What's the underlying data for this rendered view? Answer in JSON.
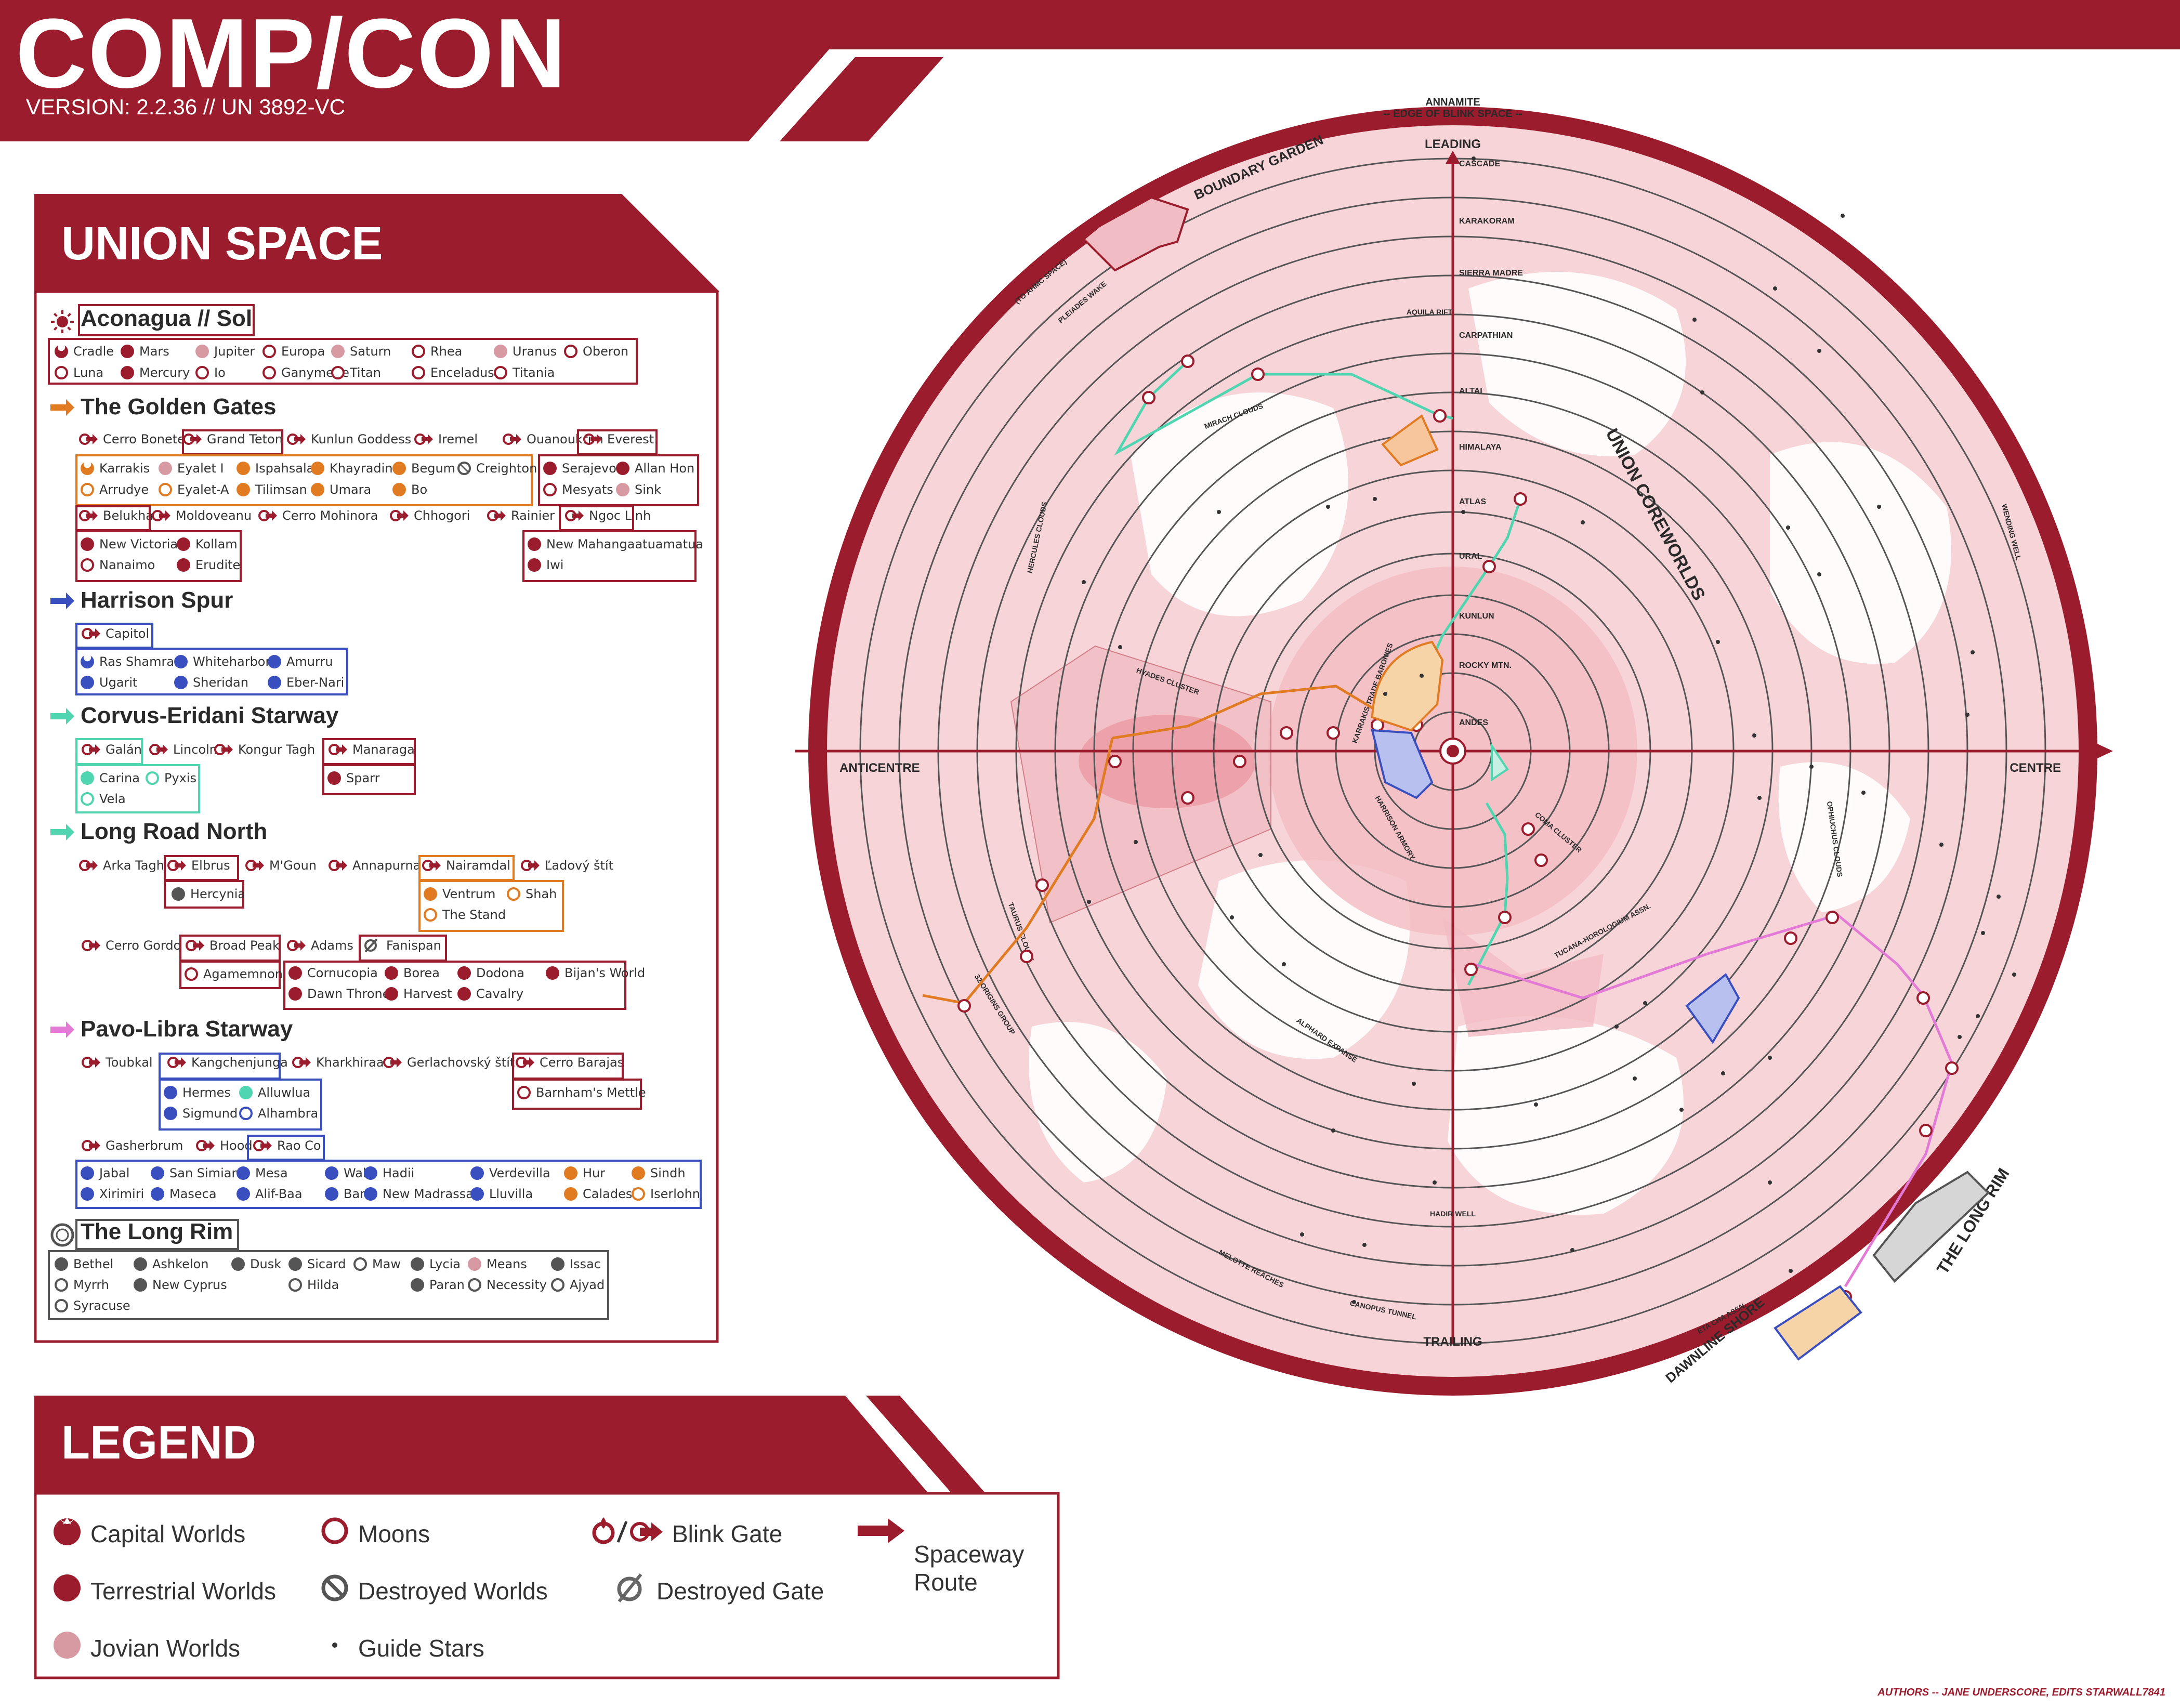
{
  "header": {
    "title": "COMP/CON",
    "version": "VERSION: 2.2.36 // UN 3892-VC"
  },
  "colors": {
    "primary": "#9b1c2c",
    "terrestrial": "#9b1c2c",
    "jovian": "#d79aa3",
    "golden_gates": "#e07b22",
    "harrison_spur": "#3a4fbf",
    "corvus_eridani": "#4fd6b0",
    "long_road_north": "#4fd6b0",
    "pavo_libra": "#e27ad6",
    "long_rim": "#555555"
  },
  "union_space": {
    "title": "UNION SPACE",
    "groups": [
      {
        "id": "sol",
        "title": "Aconagua // Sol",
        "icon": "sun-icon",
        "worlds": [
          {
            "name": "Cradle",
            "type": "capital"
          },
          {
            "name": "Mars",
            "type": "terrestrial"
          },
          {
            "name": "Jupiter",
            "type": "jovian"
          },
          {
            "name": "Europa",
            "type": "moon"
          },
          {
            "name": "Saturn",
            "type": "jovian"
          },
          {
            "name": "Rhea",
            "type": "moon"
          },
          {
            "name": "Uranus",
            "type": "jovian"
          },
          {
            "name": "Oberon",
            "type": "moon"
          },
          {
            "name": "Luna",
            "type": "moon"
          },
          {
            "name": "Mercury",
            "type": "terrestrial"
          },
          {
            "name": "Io",
            "type": "moon"
          },
          {
            "name": "Ganymede",
            "type": "moon"
          },
          {
            "name": "Titan",
            "type": "moon"
          },
          {
            "name": "Enceladus",
            "type": "moon"
          },
          {
            "name": "Titania",
            "type": "moon"
          }
        ]
      },
      {
        "id": "golden",
        "title": "The Golden Gates",
        "icon": "arrow-icon",
        "gates_row1": [
          "Cerro Bonete",
          "Grand Teton",
          "Kunlun Goddess",
          "Iremel",
          "Ouanoukrim",
          "Everest"
        ],
        "worlds_a": [
          {
            "name": "Karrakis",
            "type": "capital"
          },
          {
            "name": "Eyalet I",
            "type": "jovian"
          },
          {
            "name": "Ispahsala",
            "type": "terrestrial"
          },
          {
            "name": "Khayradin",
            "type": "terrestrial"
          },
          {
            "name": "Begum",
            "type": "terrestrial"
          },
          {
            "name": "Creighton",
            "type": "destroyed"
          },
          {
            "name": "Arrudye",
            "type": "moon"
          },
          {
            "name": "Eyalet-A",
            "type": "moon"
          },
          {
            "name": "Tilimsan",
            "type": "terrestrial"
          },
          {
            "name": "Umara",
            "type": "terrestrial"
          },
          {
            "name": "Bo",
            "type": "terrestrial"
          }
        ],
        "worlds_everest": [
          {
            "name": "Serajevo",
            "type": "terrestrial"
          },
          {
            "name": "Allan Hon",
            "type": "terrestrial"
          },
          {
            "name": "Mesyats",
            "type": "moon"
          },
          {
            "name": "Sink",
            "type": "jovian"
          }
        ],
        "gates_row2": [
          "Belukha",
          "Moldoveanu",
          "Cerro Mohinora",
          "Chhogori",
          "Rainier",
          "Ngoc Linh"
        ],
        "worlds_belukha": [
          {
            "name": "New Victoria",
            "type": "terrestrial"
          },
          {
            "name": "Kollam",
            "type": "terrestrial"
          },
          {
            "name": "Nanaimo",
            "type": "moon"
          },
          {
            "name": "Erudite",
            "type": "terrestrial"
          }
        ],
        "worlds_ngoc": [
          {
            "name": "New Mahangaatuamatua",
            "type": "terrestrial"
          },
          {
            "name": "Iwi",
            "type": "terrestrial"
          }
        ]
      },
      {
        "id": "harrison",
        "title": "Harrison Spur",
        "icon": "arrow-icon",
        "gates": [
          "Capitol"
        ],
        "worlds": [
          {
            "name": "Ras Shamra",
            "type": "capital"
          },
          {
            "name": "Whiteharbor",
            "type": "terrestrial"
          },
          {
            "name": "Amurru",
            "type": "terrestrial"
          },
          {
            "name": "Ugarit",
            "type": "terrestrial"
          },
          {
            "name": "Sheridan",
            "type": "terrestrial"
          },
          {
            "name": "Eber-Nari",
            "type": "terrestrial"
          }
        ]
      },
      {
        "id": "corvus",
        "title": "Corvus-Eridani Starway",
        "icon": "arrow-icon",
        "gates": [
          "Galán",
          "Lincoln",
          "Kongur Tagh",
          "Manaraga"
        ],
        "worlds_galan": [
          {
            "name": "Carina",
            "type": "terrestrial"
          },
          {
            "name": "Pyxis",
            "type": "moon"
          },
          {
            "name": "Vela",
            "type": "moon"
          }
        ],
        "worlds_manaraga": [
          {
            "name": "Sparr",
            "type": "terrestrial"
          }
        ]
      },
      {
        "id": "longroad",
        "title": "Long Road North",
        "icon": "arrow-icon",
        "gates_row1": [
          "Arka Tagh",
          "Elbrus",
          "M'Goun",
          "Annapurna",
          "Nairamdal",
          "Ľadový štít"
        ],
        "worlds_elbrus": [
          {
            "name": "Hercynia",
            "type": "destroyed-solid"
          }
        ],
        "worlds_nairamdal": [
          {
            "name": "Ventrum",
            "type": "terrestrial"
          },
          {
            "name": "Shah",
            "type": "moon"
          },
          {
            "name": "The Stand",
            "type": "moon"
          }
        ],
        "gates_row2": [
          "Cerro Gordo",
          "Broad Peak",
          "Adams",
          "Fanispan"
        ],
        "worlds_broad": [
          {
            "name": "Agamemnon",
            "type": "moon"
          }
        ],
        "worlds_adams": [
          {
            "name": "Cornucopia",
            "type": "terrestrial"
          },
          {
            "name": "Borea",
            "type": "terrestrial"
          },
          {
            "name": "Dodona",
            "type": "terrestrial"
          },
          {
            "name": "Bijan's World",
            "type": "terrestrial"
          },
          {
            "name": "Dawn Throne",
            "type": "terrestrial"
          },
          {
            "name": "Harvest",
            "type": "terrestrial"
          },
          {
            "name": "Cavalry",
            "type": "terrestrial"
          }
        ]
      },
      {
        "id": "pavo",
        "title": "Pavo-Libra Starway",
        "icon": "arrow-icon",
        "gates_row1": [
          "Toubkal",
          "Kangchenjunga",
          "Kharkhiraa",
          "Gerlachovský štít",
          "Cerro Barajas"
        ],
        "worlds_kang": [
          {
            "name": "Hermes",
            "type": "terrestrial"
          },
          {
            "name": "Alluwlua",
            "type": "terrestrial"
          },
          {
            "name": "Sigmund",
            "type": "terrestrial"
          },
          {
            "name": "Alhambra",
            "type": "moon"
          }
        ],
        "worlds_barajas": [
          {
            "name": "Barnham's Mettle",
            "type": "moon"
          }
        ],
        "gates_row2": [
          "Gasherbrum",
          "Hood",
          "Rao Co"
        ],
        "worlds_rao": [
          {
            "name": "Jabal",
            "type": "terrestrial"
          },
          {
            "name": "San Simian",
            "type": "terrestrial"
          },
          {
            "name": "Mesa",
            "type": "terrestrial"
          },
          {
            "name": "Wali",
            "type": "terrestrial"
          },
          {
            "name": "Hadii",
            "type": "terrestrial"
          },
          {
            "name": "Verdevilla",
            "type": "terrestrial"
          },
          {
            "name": "Hur",
            "type": "terrestrial"
          },
          {
            "name": "Sindh",
            "type": "terrestrial"
          },
          {
            "name": "Xirimiri",
            "type": "terrestrial"
          },
          {
            "name": "Maseca",
            "type": "terrestrial"
          },
          {
            "name": "Alif-Baa",
            "type": "terrestrial"
          },
          {
            "name": "Barr",
            "type": "terrestrial"
          },
          {
            "name": "New Madrassa",
            "type": "terrestrial"
          },
          {
            "name": "Lluvilla",
            "type": "terrestrial"
          },
          {
            "name": "Caladesh",
            "type": "terrestrial"
          },
          {
            "name": "Iserlohn",
            "type": "moon"
          }
        ]
      },
      {
        "id": "longrim",
        "title": "The Long Rim",
        "icon": "ring-icon",
        "worlds": [
          {
            "name": "Bethel",
            "type": "terrestrial"
          },
          {
            "name": "Ashkelon",
            "type": "terrestrial"
          },
          {
            "name": "Dusk",
            "type": "terrestrial"
          },
          {
            "name": "Sicard",
            "type": "terrestrial"
          },
          {
            "name": "Maw",
            "type": "moon"
          },
          {
            "name": "Lycia",
            "type": "terrestrial"
          },
          {
            "name": "Means",
            "type": "jovian"
          },
          {
            "name": "Issac",
            "type": "terrestrial"
          },
          {
            "name": "Myrrh",
            "type": "moon"
          },
          {
            "name": "New Cyprus",
            "type": "terrestrial"
          },
          {
            "name": "Hilda",
            "type": "moon"
          },
          {
            "name": "Paran",
            "type": "terrestrial"
          },
          {
            "name": "Necessity",
            "type": "moon"
          },
          {
            "name": "Ajyad",
            "type": "moon"
          },
          {
            "name": "Syracuse",
            "type": "moon"
          }
        ]
      }
    ]
  },
  "legend": {
    "title": "LEGEND",
    "items": [
      {
        "label": "Capital Worlds",
        "icon": "capital-world-icon"
      },
      {
        "label": "Moons",
        "icon": "moon-icon"
      },
      {
        "label": "Blink Gate",
        "icon": "blink-gate-icon"
      },
      {
        "label": "Spaceway Route",
        "icon": "spaceway-arrow-icon"
      },
      {
        "label": "Terrestrial Worlds",
        "icon": "terrestrial-world-icon"
      },
      {
        "label": "Destroyed Worlds",
        "icon": "destroyed-world-icon"
      },
      {
        "label": "Destroyed Gate",
        "icon": "destroyed-gate-icon"
      },
      {
        "label": "Jovian Worlds",
        "icon": "jovian-world-icon"
      },
      {
        "label": "Guide Stars",
        "icon": "guide-star-icon"
      }
    ],
    "spaceway_line1": "Spaceway",
    "spaceway_line2": "Route"
  },
  "map": {
    "top_label_1": "ANNAMITE",
    "top_label_2": "-- EDGE OF BLINK SPACE --",
    "leading": "LEADING",
    "trailing": "TRAILING",
    "anticentre": "ANTICENTRE",
    "centre": "CENTRE",
    "rings": [
      "CASCADE",
      "KARAKORAM",
      "SIERRA MADRE",
      "CARPATHIAN",
      "ALTAI",
      "HIMALAYA",
      "ATLAS",
      "URAL",
      "KUNLUN",
      "ROCKY MTN.",
      "ANDES"
    ],
    "regions": {
      "boundary_garden": "BOUNDARY GARDEN",
      "union_coreworlds": "UNION COREWORLDS",
      "the_long_rim": "THE LONG RIM",
      "dawnline_shore": "DAWNLINE SHORE",
      "hyades": "HYADES CLUSTER",
      "coma": "COMA CLUSTER",
      "harrison_armory": "HARRISON ARMORY",
      "karrakis": "KARRAKIS TRADE BARONIES",
      "tucana": "TUCANA-HOROLOGIUM ASSN.",
      "aquila": "AQUILA RIFT",
      "mirach": "MIRACH CLOUDS",
      "pleiades": "PLEIADES WAKE",
      "to_ahmc": "(TO AHMC SPACE)",
      "hercules": "HERCULES CLOUDS",
      "taurus": "TAURUS CLOUDS",
      "origins": "32 ORIGINS GROUP",
      "alphard": "ALPHARD EXPANSE",
      "hadir": "HADIR WELL",
      "melotte": "MELOTTE REACHES",
      "canopus": "CANOPUS TUNNEL",
      "eta_cha": "ETA CHA ASSN.",
      "ophiuchus": "OPHIUCHUS CLOUDS",
      "wending": "WENDING WELL"
    }
  },
  "authors": "AUTHORS -- JANE UNDERSCORE, EDITS STARWALL7841"
}
